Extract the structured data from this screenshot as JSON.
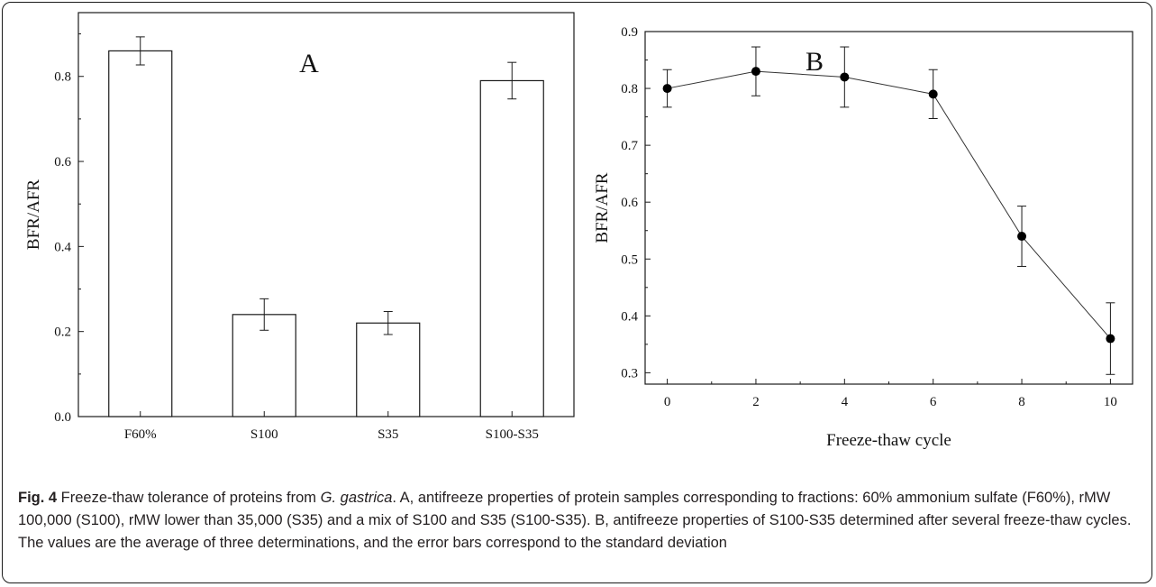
{
  "chart_data": [
    {
      "type": "bar",
      "title": "A",
      "xlabel": "",
      "ylabel": "BFR/AFR",
      "categories": [
        "F60%",
        "S100",
        "S35",
        "S100-S35"
      ],
      "values": [
        0.86,
        0.24,
        0.22,
        0.79
      ],
      "errors": [
        0.033,
        0.037,
        0.027,
        0.043
      ],
      "ylim": [
        0.0,
        0.95
      ],
      "yticks": [
        "0.0",
        "0.2",
        "0.4",
        "0.6",
        "0.8"
      ],
      "grid": false,
      "bar_fill": "#ffffff",
      "bar_stroke": "#1a1a1a"
    },
    {
      "type": "line",
      "title": "B",
      "xlabel": "Freeze-thaw cycle",
      "ylabel": "BFR/AFR",
      "x": [
        0,
        2,
        4,
        6,
        8,
        10
      ],
      "values": [
        0.8,
        0.83,
        0.82,
        0.79,
        0.54,
        0.36
      ],
      "errors": [
        0.033,
        0.043,
        0.053,
        0.043,
        0.053,
        0.063
      ],
      "xlim": [
        -0.5,
        10.5
      ],
      "ylim": [
        0.28,
        0.9
      ],
      "xticks": [
        "0",
        "2",
        "4",
        "6",
        "8",
        "10"
      ],
      "yticks": [
        "0.3",
        "0.4",
        "0.5",
        "0.6",
        "0.7",
        "0.8",
        "0.9"
      ],
      "grid": false,
      "marker_color": "#000000",
      "line_color": "#333333"
    }
  ],
  "caption": {
    "label": "Fig. 4",
    "text_1": " Freeze-thaw tolerance of proteins from ",
    "species": "G. gastrica",
    "text_2": ". A, antifreeze properties of protein samples corresponding to fractions: 60% ammonium sulfate (F60%), rMW 100,000 (S100), rMW lower than 35,000 (S35) and a mix of S100 and S35 (S100-S35). B, antifreeze properties of S100-S35 determined after several freeze-thaw cycles. The values are the average of three determinations, and the error bars correspond to the standard deviation"
  }
}
